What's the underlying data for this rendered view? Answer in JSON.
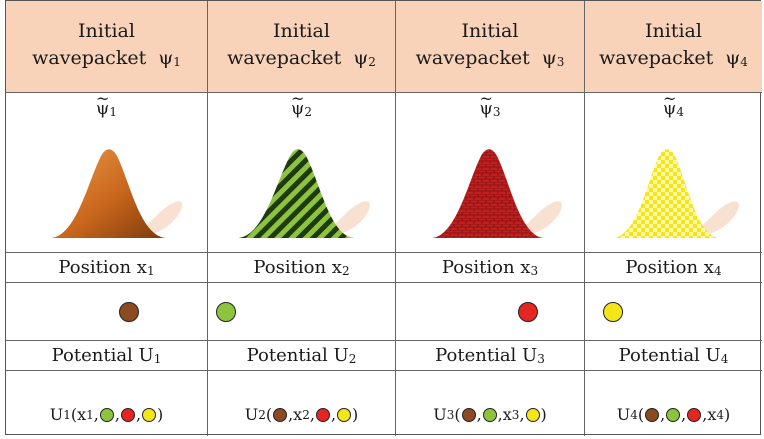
{
  "columns": [
    {
      "header_line1": "Initial",
      "header_line2": "wavepacket",
      "psi_symbol": "ψ",
      "psi_sub": "1",
      "tilde_sub": "1",
      "position_label": "Position x",
      "position_sub": "1",
      "potential_label": "Potential U",
      "potential_sub": "1",
      "curve_style": "gradient-orange",
      "dot_color": "#8b4a1f",
      "formula": {
        "prefix": "U",
        "prefix_sub": "1",
        "open": "(",
        "parts": [
          "x1",
          "green",
          "red",
          "yellow"
        ],
        "close": ")"
      }
    },
    {
      "header_line1": "Initial",
      "header_line2": "wavepacket",
      "psi_symbol": "ψ",
      "psi_sub": "2",
      "tilde_sub": "2",
      "position_label": "Position x",
      "position_sub": "2",
      "potential_label": "Potential U",
      "potential_sub": "2",
      "curve_style": "stripes-green",
      "dot_color": "#8dc43d",
      "formula": {
        "prefix": "U",
        "prefix_sub": "2",
        "open": "(",
        "parts": [
          "brown",
          "x2",
          "red",
          "yellow"
        ],
        "close": ")"
      }
    },
    {
      "header_line1": "Initial",
      "header_line2": "wavepacket",
      "psi_symbol": "ψ",
      "psi_sub": "3",
      "tilde_sub": "3",
      "position_label": "Position x",
      "position_sub": "3",
      "potential_label": "Potential U",
      "potential_sub": "3",
      "curve_style": "bricks-red",
      "dot_color": "#e52521",
      "formula": {
        "prefix": "U",
        "prefix_sub": "3",
        "open": "(",
        "parts": [
          "brown",
          "green",
          "x3",
          "yellow"
        ],
        "close": ")"
      }
    },
    {
      "header_line1": "Initial",
      "header_line2": "wavepacket",
      "psi_symbol": "ψ",
      "psi_sub": "4",
      "tilde_sub": "4",
      "position_label": "Position x",
      "position_sub": "4",
      "potential_label": "Potential U",
      "potential_sub": "4",
      "curve_style": "checks-yellow",
      "dot_color": "#f5e61a",
      "formula": {
        "prefix": "U",
        "prefix_sub": "4",
        "open": "(",
        "parts": [
          "brown",
          "green",
          "red",
          "x4"
        ],
        "close": ")"
      }
    }
  ],
  "colors": {
    "header_bg": "#f8d3ba",
    "brown": "#8b4a1f",
    "green": "#8dc43d",
    "red": "#e52521",
    "yellow": "#f5e61a",
    "shadow_peach": "#f7dcc9"
  }
}
